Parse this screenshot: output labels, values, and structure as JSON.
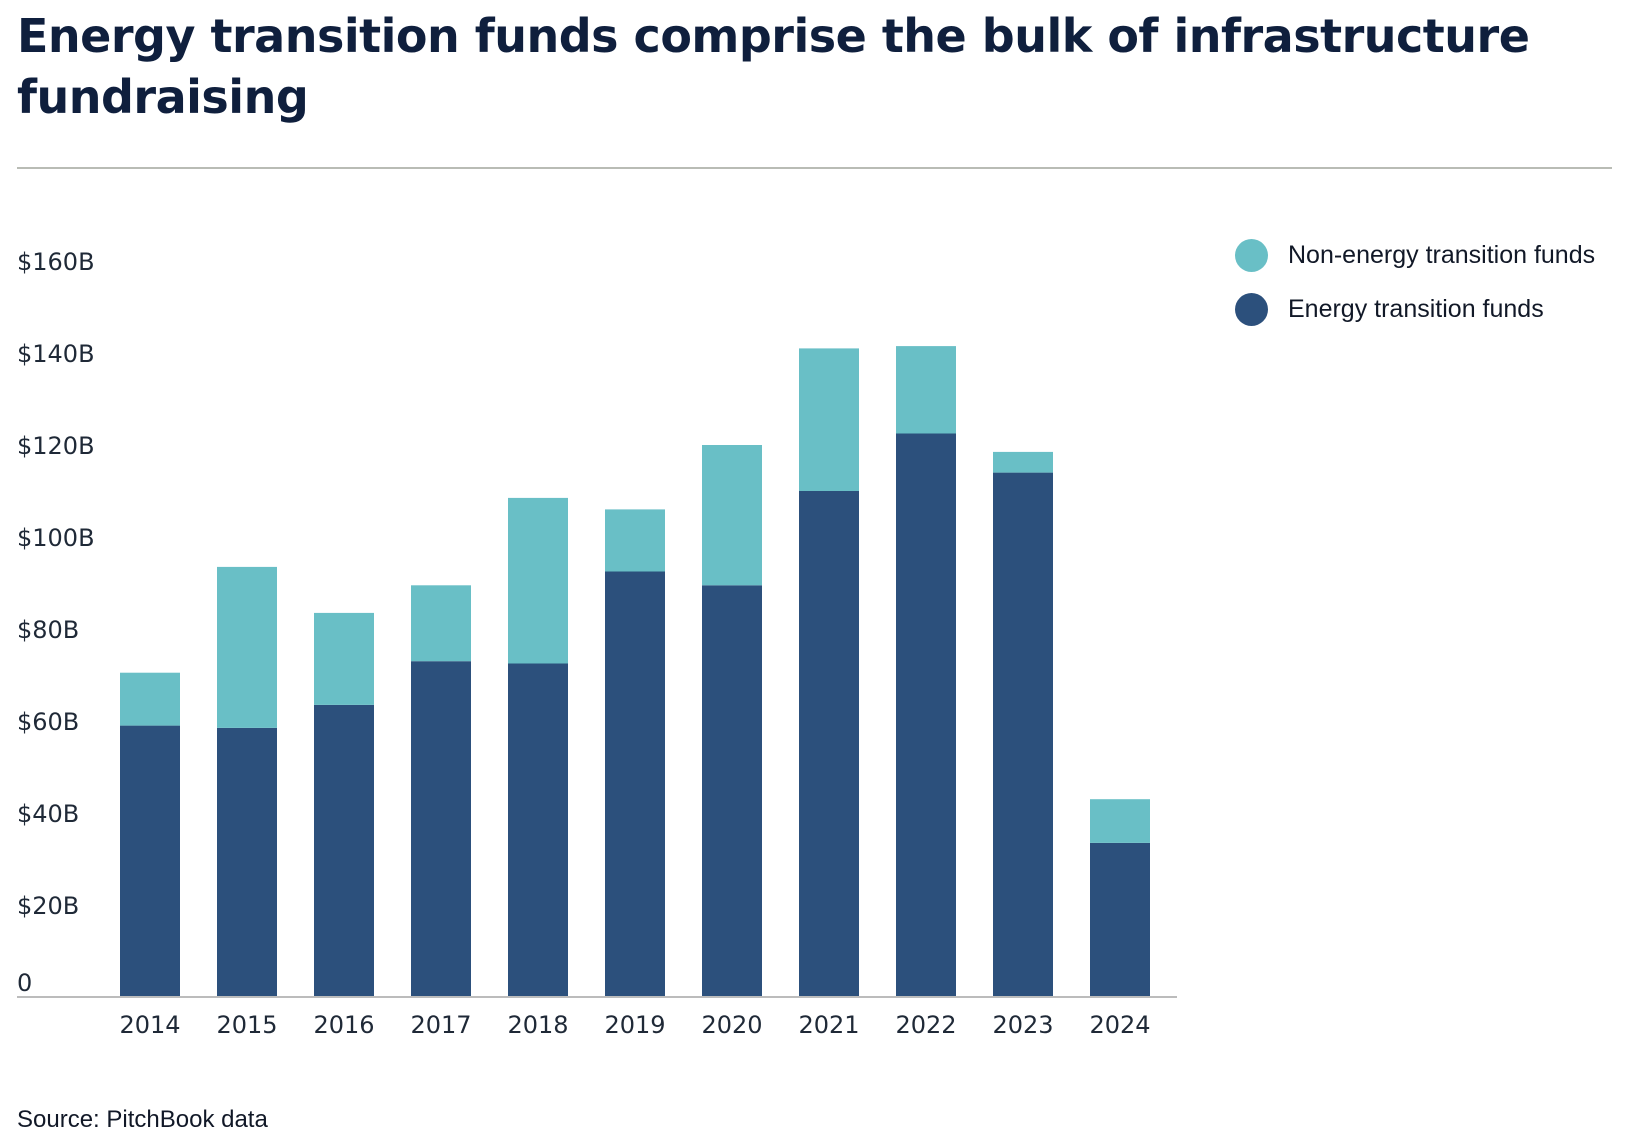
{
  "title": "Energy transition funds comprise the bulk of infrastructure fundraising",
  "source": "Source: PitchBook data",
  "colors": {
    "energy": "#2c507c",
    "non_energy": "#69bfc6",
    "axis": "#bcbcbc"
  },
  "chart_data": {
    "type": "bar",
    "stacked": true,
    "categories": [
      "2014",
      "2015",
      "2016",
      "2017",
      "2018",
      "2019",
      "2020",
      "2021",
      "2022",
      "2023",
      "2024"
    ],
    "series": [
      {
        "name": "Energy transition funds",
        "color": "#2c507c",
        "values": [
          59,
          58.5,
          63.5,
          73,
          72.5,
          92.5,
          89.5,
          110,
          122.5,
          114,
          33.5
        ]
      },
      {
        "name": "Non-energy transition funds",
        "color": "#69bfc6",
        "values": [
          11.5,
          35,
          20,
          16.5,
          36,
          13.5,
          30.5,
          31,
          19,
          4.5,
          9.5
        ]
      }
    ],
    "ylim": [
      0,
      160
    ],
    "yticks": [
      0,
      20,
      40,
      60,
      80,
      100,
      120,
      140,
      160
    ],
    "ytick_labels": [
      "0",
      "$20B",
      "$40B",
      "$60B",
      "$80B",
      "$100B",
      "$120B",
      "$140B",
      "$160B"
    ],
    "legend": {
      "position": "top-right",
      "entries": [
        "Non-energy transition funds",
        "Energy transition funds"
      ]
    },
    "grid": false
  }
}
